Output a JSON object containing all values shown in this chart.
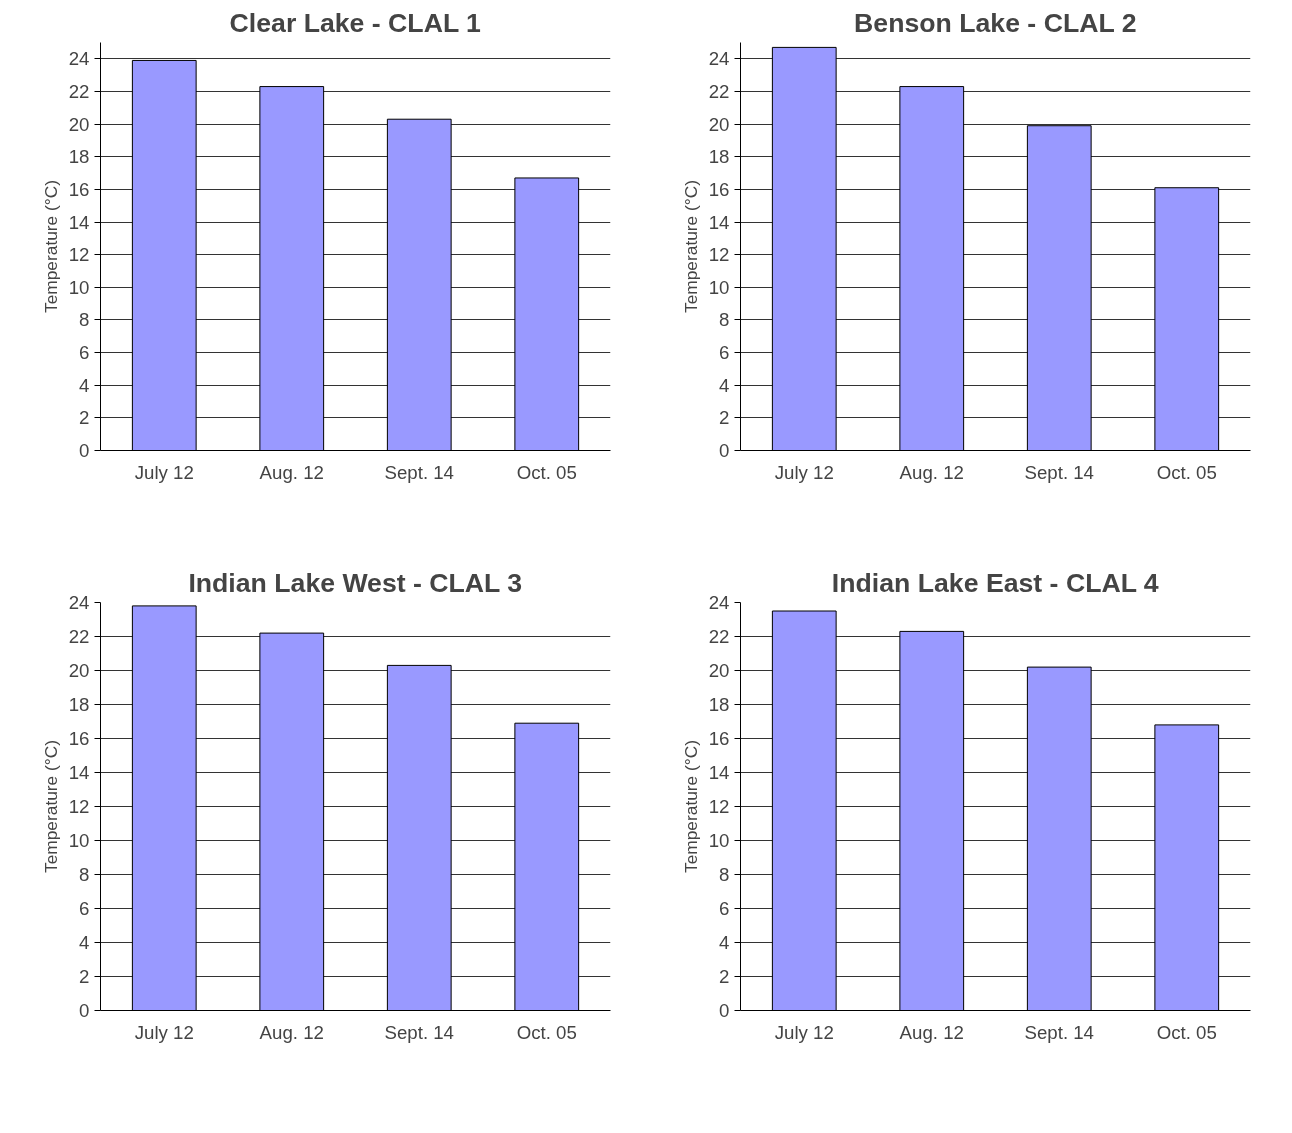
{
  "chart_data": [
    {
      "type": "bar",
      "title": "Clear Lake - CLAL 1",
      "ylabel": "Temperature (°C)",
      "categories": [
        "July 12",
        "Aug. 12",
        "Sept. 14",
        "Oct. 05"
      ],
      "values": [
        23.9,
        22.3,
        20.3,
        16.7
      ],
      "color": "#9999ff",
      "ylim": [
        0,
        25
      ],
      "yticks": [
        0,
        2,
        4,
        6,
        8,
        10,
        12,
        14,
        16,
        18,
        20,
        22,
        24
      ],
      "grid": "y"
    },
    {
      "type": "bar",
      "title": "Benson Lake - CLAL 2",
      "ylabel": "Temperature (°C)",
      "categories": [
        "July 12",
        "Aug. 12",
        "Sept. 14",
        "Oct. 05"
      ],
      "values": [
        24.7,
        22.3,
        19.9,
        16.1
      ],
      "color": "#9999ff",
      "ylim": [
        0,
        25
      ],
      "yticks": [
        0,
        2,
        4,
        6,
        8,
        10,
        12,
        14,
        16,
        18,
        20,
        22,
        24
      ],
      "grid": "y"
    },
    {
      "type": "bar",
      "title": "Indian Lake West - CLAL 3",
      "ylabel": "Temperature (°C)",
      "categories": [
        "July 12",
        "Aug. 12",
        "Sept. 14",
        "Oct. 05"
      ],
      "values": [
        23.8,
        22.2,
        20.3,
        16.9
      ],
      "color": "#9999ff",
      "ylim": [
        0,
        24
      ],
      "yticks": [
        0,
        2,
        4,
        6,
        8,
        10,
        12,
        14,
        16,
        18,
        20,
        22,
        24
      ],
      "grid": "y"
    },
    {
      "type": "bar",
      "title": "Indian Lake East - CLAL 4",
      "ylabel": "Temperature (°C)",
      "categories": [
        "July 12",
        "Aug. 12",
        "Sept. 14",
        "Oct. 05"
      ],
      "values": [
        23.5,
        22.3,
        20.2,
        16.8
      ],
      "color": "#9999ff",
      "ylim": [
        0,
        24
      ],
      "yticks": [
        0,
        2,
        4,
        6,
        8,
        10,
        12,
        14,
        16,
        18,
        20,
        22,
        24
      ],
      "grid": "y"
    }
  ]
}
